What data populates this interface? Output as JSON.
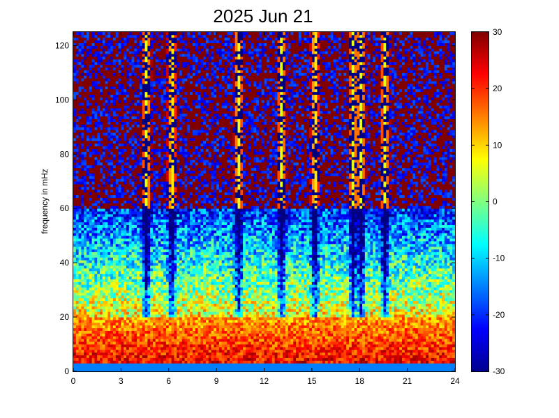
{
  "chart_data": {
    "type": "heatmap",
    "title": "2025 Jun 21",
    "xlabel": "",
    "ylabel": "frequency in mHz",
    "xlim": [
      0,
      24
    ],
    "ylim": [
      0,
      125
    ],
    "x_ticks": [
      "0",
      "3",
      "6",
      "9",
      "12",
      "15",
      "18",
      "21",
      "24"
    ],
    "y_ticks": [
      "0",
      "20",
      "40",
      "60",
      "80",
      "100",
      "120"
    ],
    "colorbar": {
      "colormap": "jet",
      "range": [
        -30,
        30
      ],
      "ticks": [
        "-30",
        "-20",
        "-10",
        "0",
        "10",
        "20",
        "30"
      ]
    },
    "grid": {
      "time_bins": 144,
      "freq_bins": 125,
      "time_step_hours": 0.1667,
      "freq_step_mHz": 1
    },
    "features": {
      "low_freq_band_mHz": [
        0,
        20
      ],
      "low_freq_level": 25,
      "high_freq_band_mHz": [
        60,
        125
      ],
      "high_freq_level": 30,
      "mid_band_min_level": -25,
      "vertical_streak_hours": [
        4.6,
        6.2,
        10.4,
        13.1,
        15.2,
        17.6,
        18.1,
        19.6
      ]
    }
  }
}
